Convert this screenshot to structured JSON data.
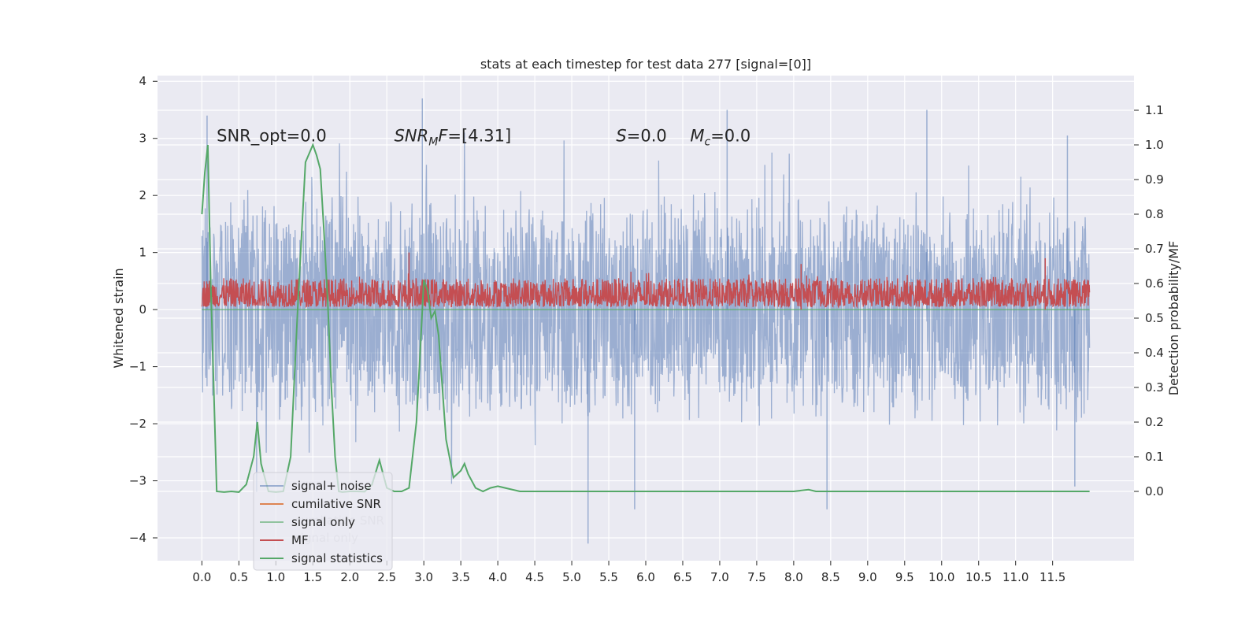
{
  "chart_data": {
    "type": "line",
    "title": "stats at each timestep for test data 277 [signal=[0]]",
    "ylabel": "Whitened strain",
    "y2label": "Detection probability/MF",
    "xlim": [
      -0.6,
      12.6
    ],
    "ylim": [
      -4.4,
      4.1
    ],
    "y2lim": [
      -0.2,
      1.2
    ],
    "x_ticks": [
      "0.0",
      "0.5",
      "1.0",
      "1.5",
      "2.0",
      "2.5",
      "3.0",
      "3.5",
      "4.0",
      "4.5",
      "5.0",
      "5.5",
      "6.0",
      "6.5",
      "7.0",
      "7.5",
      "8.0",
      "8.5",
      "9.0",
      "9.5",
      "10.0",
      "10.5",
      "11.0",
      "11.5"
    ],
    "y_ticks": [
      "−4",
      "−3",
      "−2",
      "−1",
      "0",
      "1",
      "2",
      "3",
      "4"
    ],
    "y2_ticks": [
      "0.0",
      "0.1",
      "0.2",
      "0.3",
      "0.4",
      "0.5",
      "0.6",
      "0.7",
      "0.8",
      "0.9",
      "1.0",
      "1.1"
    ],
    "grid": true,
    "legend_position": "lower-left",
    "annotations": [
      {
        "text": "SNR_opt=0.0",
        "x": 0.2,
        "y": 2.95
      },
      {
        "text": "SNR",
        "sub": "M",
        "rest": "F=[4.31]",
        "italic_until": "F",
        "x": 2.6,
        "y": 2.95
      },
      {
        "text": "S",
        "rest": "=0.0",
        "x": 5.6,
        "y": 2.95
      },
      {
        "text": "M",
        "sub": "c",
        "rest": "=0.0",
        "x": 6.6,
        "y": 2.95
      }
    ],
    "series": [
      {
        "name": "signal+ noise",
        "color": "#4c72b0",
        "alpha": 0.5,
        "axis": "left",
        "style": "noise",
        "x_range": [
          0.0,
          12.0
        ],
        "envelope_low": -1.3,
        "envelope_high": 1.3,
        "spikes": [
          [
            0.07,
            3.4
          ],
          [
            2.98,
            3.7
          ],
          [
            7.1,
            3.5
          ],
          [
            9.8,
            3.5
          ],
          [
            11.7,
            3.05
          ],
          [
            5.22,
            -4.1
          ],
          [
            5.85,
            -3.5
          ],
          [
            8.45,
            -3.5
          ],
          [
            11.8,
            -3.1
          ]
        ]
      },
      {
        "name": "cumilative SNR",
        "color": "#dd8452",
        "axis": "right",
        "x": [],
        "y": []
      },
      {
        "name": "signal only",
        "color": "#55a868",
        "alpha": 0.6,
        "axis": "left",
        "x": [
          0.0,
          12.0
        ],
        "y": [
          0.0,
          0.0
        ]
      },
      {
        "name": "MF",
        "color": "#c44e52",
        "axis": "left",
        "style": "noise",
        "x_range": [
          0.0,
          12.0
        ],
        "envelope_low": 0.05,
        "envelope_high": 0.55,
        "spikes": [
          [
            2.8,
            1.0
          ],
          [
            8.1,
            0.8
          ],
          [
            11.4,
            0.9
          ]
        ]
      },
      {
        "name": "signal statistics",
        "color": "#55a868",
        "axis": "right",
        "x": [
          0.0,
          0.04,
          0.08,
          0.12,
          0.16,
          0.2,
          0.3,
          0.4,
          0.5,
          0.6,
          0.7,
          0.75,
          0.8,
          0.9,
          1.0,
          1.1,
          1.2,
          1.3,
          1.4,
          1.5,
          1.55,
          1.6,
          1.65,
          1.7,
          1.75,
          1.8,
          1.85,
          1.9,
          2.0,
          2.1,
          2.2,
          2.3,
          2.4,
          2.45,
          2.5,
          2.6,
          2.7,
          2.8,
          2.9,
          2.95,
          3.0,
          3.05,
          3.1,
          3.15,
          3.2,
          3.25,
          3.3,
          3.4,
          3.5,
          3.55,
          3.6,
          3.7,
          3.8,
          3.9,
          4.0,
          4.1,
          4.3,
          4.5,
          5.0,
          5.5,
          6.0,
          6.5,
          7.0,
          7.5,
          8.0,
          8.2,
          8.3,
          8.4,
          8.5,
          9.0,
          9.5,
          10.0,
          10.5,
          11.0,
          11.5,
          12.0
        ],
        "y": [
          0.8,
          0.92,
          1.0,
          0.6,
          0.3,
          0.0,
          -0.002,
          0.0,
          -0.002,
          0.02,
          0.1,
          0.2,
          0.08,
          0.0,
          -0.002,
          0.0,
          0.1,
          0.55,
          0.95,
          1.0,
          0.97,
          0.93,
          0.75,
          0.55,
          0.3,
          0.1,
          0.0,
          -0.002,
          0.0,
          0.0,
          -0.001,
          0.02,
          0.09,
          0.05,
          0.01,
          0.0,
          0.0,
          0.01,
          0.2,
          0.4,
          0.61,
          0.58,
          0.5,
          0.52,
          0.45,
          0.3,
          0.15,
          0.04,
          0.06,
          0.08,
          0.05,
          0.01,
          0.0,
          0.01,
          0.015,
          0.01,
          0.0,
          0.0,
          0.0,
          0.0,
          0.0,
          0.0,
          0.0,
          0.0,
          0.0,
          0.005,
          0.0,
          0.0,
          0.0,
          0.0,
          0.0,
          0.0,
          0.0,
          0.0,
          0.0,
          0.0
        ]
      }
    ]
  }
}
